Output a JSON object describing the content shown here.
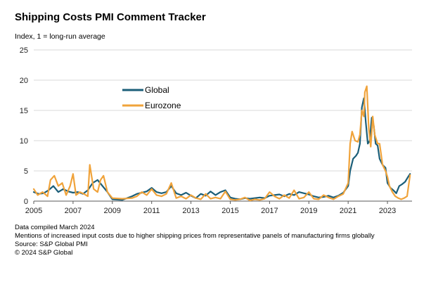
{
  "chart_data": {
    "type": "line",
    "title": "Shipping Costs PMI Comment Tracker",
    "ylabel": "Index, 1 = long-run average",
    "xlabel": "",
    "ylim": [
      0,
      25
    ],
    "xlim": [
      2005,
      2024.25
    ],
    "yticks": [
      0,
      5,
      10,
      15,
      20,
      25
    ],
    "xticks": [
      2005,
      2007,
      2009,
      2011,
      2013,
      2015,
      2017,
      2019,
      2021,
      2023
    ],
    "grid": true,
    "legend": "upper-left",
    "series": [
      {
        "name": "Global",
        "color": "#1b5e78",
        "x": [
          2005,
          2005.25,
          2005.5,
          2005.75,
          2006,
          2006.25,
          2006.5,
          2006.75,
          2007,
          2007.25,
          2007.5,
          2007.75,
          2008,
          2008.25,
          2008.5,
          2008.75,
          2009,
          2009.5,
          2010,
          2010.25,
          2010.5,
          2010.75,
          2011,
          2011.25,
          2011.5,
          2011.75,
          2012,
          2012.25,
          2012.5,
          2012.75,
          2013,
          2013.25,
          2013.5,
          2013.75,
          2014,
          2014.25,
          2014.5,
          2014.75,
          2015,
          2015.25,
          2015.5,
          2015.75,
          2016,
          2016.25,
          2016.5,
          2016.75,
          2017,
          2017.25,
          2017.5,
          2017.75,
          2018,
          2018.25,
          2018.5,
          2018.75,
          2019,
          2019.25,
          2019.5,
          2019.75,
          2020,
          2020.25,
          2020.5,
          2020.75,
          2021,
          2021.1,
          2021.25,
          2021.4,
          2021.5,
          2021.6,
          2021.7,
          2021.8,
          2021.9,
          2022,
          2022.1,
          2022.2,
          2022.3,
          2022.4,
          2022.5,
          2022.6,
          2022.75,
          2022.9,
          2023,
          2023.15,
          2023.3,
          2023.45,
          2023.6,
          2023.75,
          2023.9,
          2024.05,
          2024.15
        ],
        "values": [
          1.5,
          1.2,
          1.3,
          1.8,
          2.5,
          1.5,
          2.0,
          1.6,
          1.4,
          1.5,
          1.2,
          1.8,
          3.0,
          3.5,
          2.5,
          1.5,
          0.3,
          0.2,
          0.8,
          1.2,
          1.4,
          1.6,
          2.2,
          1.5,
          1.3,
          1.5,
          2.5,
          1.3,
          1.0,
          1.4,
          0.9,
          0.5,
          1.2,
          0.9,
          1.6,
          1.0,
          1.5,
          1.8,
          0.6,
          0.4,
          0.3,
          0.5,
          0.4,
          0.5,
          0.6,
          0.5,
          0.9,
          1.0,
          1.1,
          0.8,
          1.2,
          1.0,
          1.5,
          1.3,
          1.1,
          0.8,
          0.6,
          0.7,
          0.9,
          0.6,
          0.9,
          1.4,
          2.5,
          5.0,
          7.0,
          7.5,
          8.0,
          9.5,
          15.5,
          17.0,
          13.0,
          9.5,
          10.0,
          13.8,
          12.5,
          9.5,
          9.2,
          7.0,
          6.0,
          5.5,
          3.0,
          2.2,
          1.8,
          1.3,
          2.5,
          2.8,
          3.2,
          4.0,
          4.5
        ]
      },
      {
        "name": "Eurozone",
        "color": "#f0a33b",
        "x": [
          2005,
          2005.2,
          2005.45,
          2005.7,
          2005.85,
          2006.05,
          2006.25,
          2006.45,
          2006.65,
          2006.85,
          2007,
          2007.15,
          2007.35,
          2007.55,
          2007.75,
          2007.85,
          2008.05,
          2008.25,
          2008.4,
          2008.55,
          2008.75,
          2009,
          2009.5,
          2010,
          2010.25,
          2010.5,
          2010.75,
          2011,
          2011.25,
          2011.5,
          2011.75,
          2012,
          2012.25,
          2012.5,
          2012.75,
          2013,
          2013.25,
          2013.5,
          2013.75,
          2014,
          2014.25,
          2014.5,
          2014.75,
          2015,
          2015.25,
          2015.5,
          2015.75,
          2016,
          2016.25,
          2016.5,
          2016.75,
          2017,
          2017.25,
          2017.5,
          2017.75,
          2018,
          2018.25,
          2018.5,
          2018.75,
          2019,
          2019.25,
          2019.5,
          2019.75,
          2020,
          2020.25,
          2020.5,
          2020.75,
          2021,
          2021.1,
          2021.2,
          2021.35,
          2021.5,
          2021.6,
          2021.7,
          2021.8,
          2021.85,
          2021.95,
          2022.05,
          2022.15,
          2022.25,
          2022.35,
          2022.5,
          2022.6,
          2022.75,
          2022.9,
          2023,
          2023.1,
          2023.25,
          2023.4,
          2023.55,
          2023.7,
          2023.85,
          2024,
          2024.15
        ],
        "values": [
          2.0,
          1.0,
          1.5,
          0.8,
          3.5,
          4.2,
          2.5,
          3.0,
          1.0,
          2.5,
          4.5,
          1.0,
          1.5,
          1.2,
          0.8,
          6.0,
          2.0,
          1.5,
          3.5,
          4.2,
          1.5,
          0.5,
          0.4,
          0.5,
          0.8,
          1.5,
          1.0,
          2.0,
          1.0,
          0.8,
          1.2,
          3.0,
          0.5,
          0.8,
          0.4,
          1.0,
          0.5,
          0.3,
          1.2,
          0.4,
          0.6,
          0.4,
          1.6,
          0.3,
          0.2,
          0.3,
          0.6,
          0.1,
          0.3,
          0.2,
          0.4,
          1.5,
          0.8,
          0.4,
          1.0,
          0.5,
          1.8,
          0.4,
          0.6,
          1.5,
          0.4,
          0.3,
          1.0,
          0.6,
          0.3,
          0.8,
          1.2,
          3.0,
          9.5,
          11.5,
          10.0,
          9.8,
          11.0,
          15.0,
          14.0,
          18.0,
          19.0,
          12.0,
          9.0,
          14.0,
          11.0,
          9.5,
          9.5,
          6.0,
          5.0,
          4.0,
          2.5,
          1.5,
          0.8,
          0.5,
          0.3,
          0.5,
          0.8,
          4.3
        ]
      }
    ]
  },
  "footnotes": [
    "Data compiled March 2024",
    "Mentions of increased input costs due to higher shipping prices from representative panels of manufacturing firms globally",
    "Source: S&P Global PMI",
    "© 2024 S&P Global"
  ]
}
